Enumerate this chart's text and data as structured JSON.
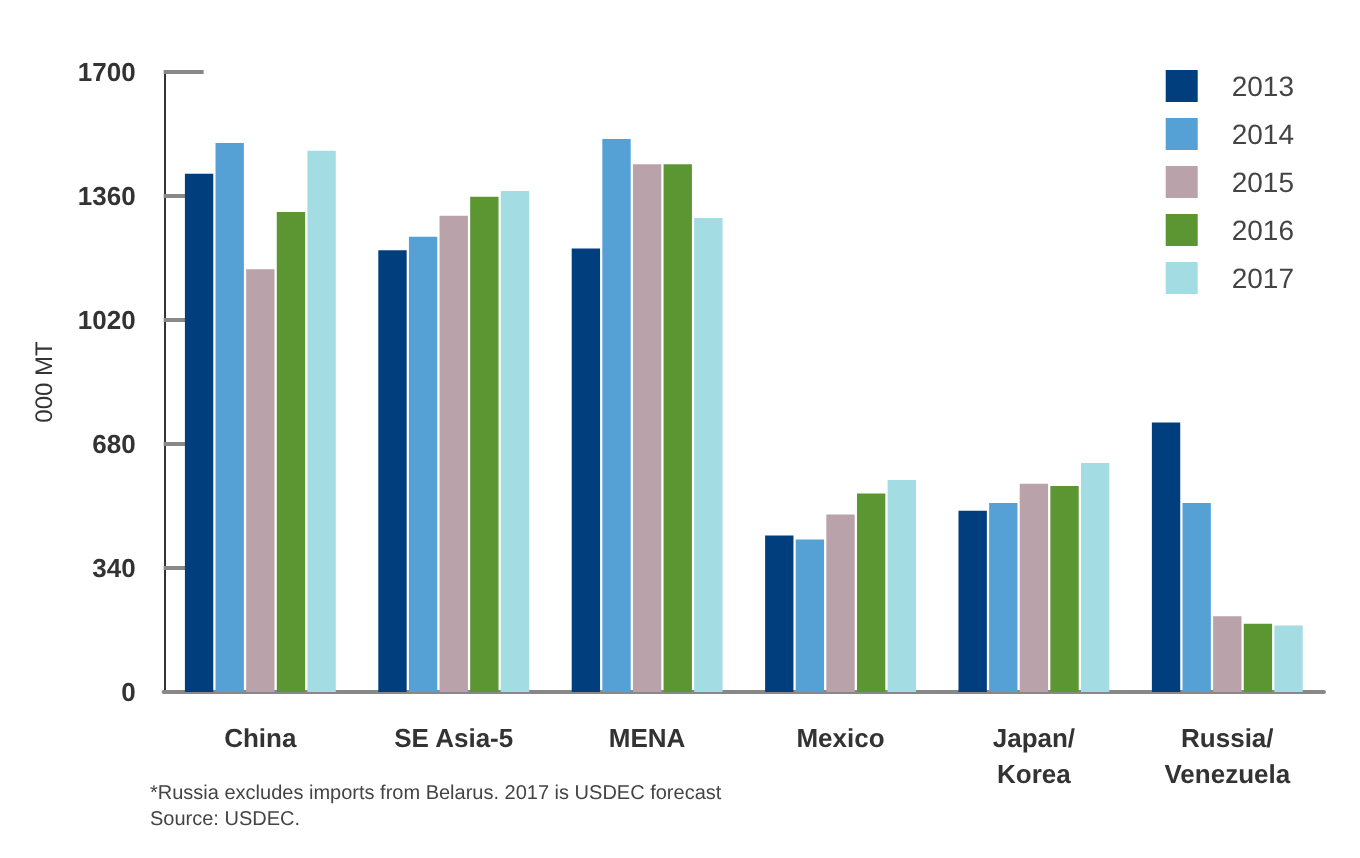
{
  "chart_data": {
    "type": "bar",
    "ylabel": "000 MT",
    "categories": [
      "China",
      "SE Asia-5",
      "MENA",
      "Mexico",
      "Japan/\nKorea",
      "Russia/\nVenezuela"
    ],
    "series": [
      {
        "name": "2013",
        "color": "#003e7e",
        "values": [
          1421,
          1211,
          1216,
          429,
          497,
          739
        ]
      },
      {
        "name": "2014",
        "color": "#55a1d6",
        "values": [
          1505,
          1248,
          1516,
          418,
          518,
          518
        ]
      },
      {
        "name": "2015",
        "color": "#b9a2a9",
        "values": [
          1159,
          1306,
          1447,
          487,
          571,
          208
        ]
      },
      {
        "name": "2016",
        "color": "#5c9632",
        "values": [
          1316,
          1358,
          1447,
          544,
          565,
          187
        ]
      },
      {
        "name": "2017",
        "color": "#a4dce4",
        "values": [
          1484,
          1374,
          1300,
          581,
          628,
          182
        ]
      }
    ],
    "ylim": [
      0,
      1700
    ],
    "yticks": [
      0,
      340,
      680,
      1020,
      1360,
      1700
    ],
    "grid": false,
    "legend": "top right",
    "annotations": [
      "*Russia excludes imports from Belarus. 2017 is USDEC forecast",
      "Source: USDEC."
    ]
  }
}
